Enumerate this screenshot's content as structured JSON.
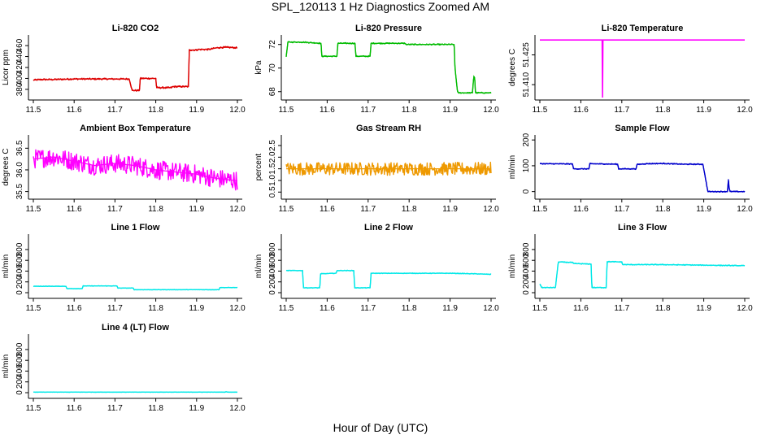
{
  "figure_title": "SPL_120113 1 Hz Diagnostics Zoomed AM",
  "x_axis_label": "Hour of Day (UTC)",
  "chart_data": [
    {
      "type": "line",
      "title": "Li-820 CO2",
      "ylabel": "Licor ppm",
      "color": "#dd0000",
      "xlim": [
        11.5,
        12.0
      ],
      "ylim": [
        365,
        475
      ],
      "xticks": [
        "11.5",
        "11.6",
        "11.7",
        "11.8",
        "11.9",
        "12.0"
      ],
      "yticks": [
        "380",
        "400",
        "420",
        "440",
        "460"
      ],
      "noise": 1.5,
      "x": [
        11.5,
        11.52,
        11.55,
        11.6,
        11.65,
        11.7,
        11.725,
        11.735,
        11.742,
        11.76,
        11.762,
        11.8,
        11.802,
        11.838,
        11.842,
        11.88,
        11.882,
        11.9,
        11.905,
        11.93,
        11.95,
        11.97,
        12.0
      ],
      "values": [
        397,
        398,
        398,
        399,
        399,
        399,
        399,
        399,
        378,
        378,
        400,
        400,
        383,
        383,
        385,
        385,
        452,
        452,
        453,
        453,
        456,
        457,
        456
      ]
    },
    {
      "type": "line",
      "title": "Li-820 Pressure",
      "ylabel": "kPa",
      "color": "#00bb00",
      "xlim": [
        11.5,
        12.0
      ],
      "ylim": [
        67.5,
        72.6
      ],
      "xticks": [
        "11.5",
        "11.6",
        "11.7",
        "11.8",
        "11.9",
        "12.0"
      ],
      "yticks": [
        "68",
        "70",
        "72"
      ],
      "noise": 0.05,
      "x": [
        11.5,
        11.502,
        11.504,
        11.54,
        11.585,
        11.587,
        11.624,
        11.626,
        11.668,
        11.67,
        11.705,
        11.707,
        11.748,
        11.75,
        11.79,
        11.792,
        11.91,
        11.912,
        11.918,
        11.92,
        11.955,
        11.956,
        11.958,
        11.96,
        11.962,
        11.97,
        12.0
      ],
      "values": [
        71,
        71.5,
        72.2,
        72.2,
        72.1,
        71,
        71,
        72.1,
        72.1,
        71,
        71,
        72.1,
        72.1,
        72.1,
        72.1,
        72,
        72,
        70,
        68,
        67.9,
        67.9,
        68.6,
        69.3,
        69.2,
        67.9,
        67.9,
        67.9
      ]
    },
    {
      "type": "line",
      "title": "Li-820 Temperature",
      "ylabel": "degrees C",
      "color": "#ff00ff",
      "xlim": [
        11.5,
        12.0
      ],
      "ylim": [
        51.4035,
        51.4338
      ],
      "xticks": [
        "11.5",
        "11.6",
        "11.7",
        "11.8",
        "11.9",
        "12.0"
      ],
      "yticks": [
        "51.410",
        "51.425"
      ],
      "noise": 0,
      "x": [
        11.5,
        11.652,
        11.653,
        11.654,
        12.0
      ],
      "values": [
        51.4325,
        51.4325,
        51.4035,
        51.4325,
        51.4325
      ]
    },
    {
      "type": "line",
      "title": "Ambient Box Temperature",
      "ylabel": "degrees C",
      "color": "#ff00ff",
      "xlim": [
        11.5,
        12.0
      ],
      "ylim": [
        35.38,
        36.75
      ],
      "xticks": [
        "11.5",
        "11.6",
        "11.7",
        "11.8",
        "11.9",
        "12.0"
      ],
      "yticks": [
        "35.5",
        "36.0",
        "36.5"
      ],
      "noise": 0.22,
      "x": [
        11.5,
        11.55,
        11.6,
        11.65,
        11.7,
        11.75,
        11.8,
        11.85,
        11.9,
        11.95,
        12.0
      ],
      "values": [
        36.25,
        36.3,
        36.2,
        36.1,
        36.15,
        36.1,
        36.0,
        35.95,
        35.9,
        35.8,
        35.75
      ]
    },
    {
      "type": "line",
      "title": "Gas Stream RH",
      "ylabel": "percent",
      "color": "#ee9900",
      "xlim": [
        11.5,
        12.0
      ],
      "ylim": [
        0.3,
        2.85
      ],
      "xticks": [
        "11.5",
        "11.6",
        "11.7",
        "11.8",
        "11.9",
        "12.0"
      ],
      "yticks": [
        "0.5",
        "1.0",
        "1.5",
        "2.0",
        "2.5"
      ],
      "noise": 0.28,
      "x": [
        11.5,
        11.6,
        11.7,
        11.8,
        11.9,
        12.0
      ],
      "values": [
        1.5,
        1.5,
        1.5,
        1.5,
        1.5,
        1.5
      ]
    },
    {
      "type": "line",
      "title": "Sample Flow",
      "ylabel": "ml/min",
      "color": "#0000cc",
      "xlim": [
        11.5,
        12.0
      ],
      "ylim": [
        -20,
        210
      ],
      "xticks": [
        "11.5",
        "11.6",
        "11.7",
        "11.8",
        "11.9",
        "12.0"
      ],
      "yticks": [
        "0",
        "100",
        "200"
      ],
      "noise": 2,
      "x": [
        11.5,
        11.58,
        11.582,
        11.62,
        11.622,
        11.69,
        11.692,
        11.735,
        11.737,
        11.76,
        11.8,
        11.85,
        11.898,
        11.91,
        11.912,
        11.958,
        11.96,
        11.962,
        11.964,
        11.98,
        12.0
      ],
      "values": [
        108,
        107,
        88,
        88,
        108,
        106,
        88,
        88,
        105,
        108,
        109,
        106,
        106,
        0,
        0,
        0,
        48,
        12,
        0,
        0,
        0
      ]
    },
    {
      "type": "line",
      "title": "Line 1 Flow",
      "ylabel": "ml/min",
      "color": "#00e8e8",
      "xlim": [
        11.5,
        12.0
      ],
      "ylim": [
        -60,
        1040
      ],
      "xticks": [
        "11.5",
        "11.6",
        "11.7",
        "11.8",
        "11.9",
        "12.0"
      ],
      "yticks": [
        "0",
        "200",
        "400",
        "600",
        "800"
      ],
      "noise": 4,
      "x": [
        11.5,
        11.58,
        11.582,
        11.62,
        11.622,
        11.705,
        11.707,
        11.745,
        11.747,
        11.955,
        11.957,
        12.0
      ],
      "values": [
        120,
        120,
        75,
        75,
        125,
        125,
        85,
        85,
        55,
        55,
        95,
        95
      ]
    },
    {
      "type": "line",
      "title": "Line 2 Flow",
      "ylabel": "ml/min",
      "color": "#00e8e8",
      "xlim": [
        11.5,
        12.0
      ],
      "ylim": [
        -60,
        1040
      ],
      "xticks": [
        "11.5",
        "11.6",
        "11.7",
        "11.8",
        "11.9",
        "12.0"
      ],
      "yticks": [
        "0",
        "200",
        "400",
        "600",
        "800"
      ],
      "noise": 6,
      "x": [
        11.5,
        11.54,
        11.542,
        11.582,
        11.584,
        11.622,
        11.624,
        11.665,
        11.667,
        11.705,
        11.707,
        11.8,
        11.9,
        11.96,
        12.0
      ],
      "values": [
        410,
        410,
        90,
        90,
        350,
        360,
        410,
        410,
        90,
        90,
        360,
        360,
        360,
        350,
        340
      ]
    },
    {
      "type": "line",
      "title": "Line 3 Flow",
      "ylabel": "ml/min",
      "color": "#00e8e8",
      "xlim": [
        11.5,
        12.0
      ],
      "ylim": [
        -60,
        1040
      ],
      "xticks": [
        "11.5",
        "11.6",
        "11.7",
        "11.8",
        "11.9",
        "12.0"
      ],
      "yticks": [
        "0",
        "200",
        "400",
        "600",
        "800"
      ],
      "noise": 8,
      "x": [
        11.5,
        11.502,
        11.504,
        11.538,
        11.545,
        11.58,
        11.582,
        11.625,
        11.627,
        11.662,
        11.664,
        11.7,
        11.702,
        11.8,
        11.9,
        12.0
      ],
      "values": [
        160,
        140,
        95,
        95,
        570,
        560,
        540,
        530,
        95,
        95,
        575,
        570,
        520,
        520,
        510,
        500
      ]
    },
    {
      "type": "line",
      "title": "Line 4 (LT) Flow",
      "ylabel": "ml/min",
      "color": "#00e8e8",
      "xlim": [
        11.5,
        12.0
      ],
      "ylim": [
        -60,
        1040
      ],
      "xticks": [
        "11.5",
        "11.6",
        "11.7",
        "11.8",
        "11.9",
        "12.0"
      ],
      "yticks": [
        "0",
        "200",
        "400",
        "600",
        "800"
      ],
      "noise": 2,
      "x": [
        11.5,
        11.8,
        11.97,
        11.972,
        11.976,
        11.978,
        12.0
      ],
      "values": [
        10,
        10,
        10,
        18,
        10,
        10,
        10
      ]
    }
  ]
}
